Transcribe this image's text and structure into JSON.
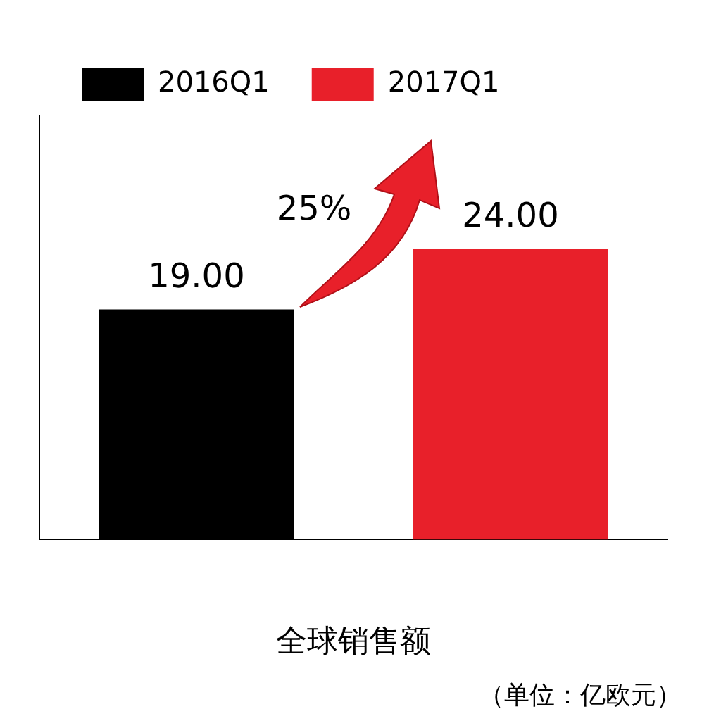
{
  "chart_data": {
    "type": "bar",
    "categories": [
      null,
      null
    ],
    "xlabel": "全球销售额",
    "stacked": true,
    "series": [
      {
        "name": "2016Q1",
        "color": "#000000",
        "values": [
          19,
          null
        ],
        "value_labels": [
          "19.00",
          null
        ]
      },
      {
        "name": "2017Q1",
        "color": "#e8202a",
        "values": [
          null,
          24
        ],
        "value_labels": [
          null,
          "24.00"
        ]
      }
    ],
    "annotations": [
      "25%",
      "（单位：亿欧元）"
    ],
    "legend": "top left",
    "grid": false
  }
}
